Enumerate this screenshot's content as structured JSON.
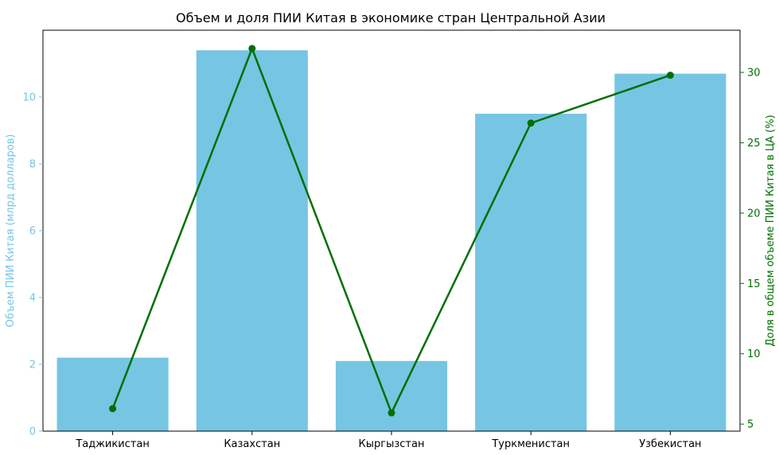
{
  "chart_data": {
    "type": "bar",
    "title": "Объем и доля ПИИ Китая в экономике стран Центральной Азии",
    "categories": [
      "Таджикистан",
      "Казахстан",
      "Кыргызстан",
      "Туркменистан",
      "Узбекистан"
    ],
    "xlabel": "",
    "ylabel": "Объем ПИИ Китая (млрд долларов)",
    "ylim": [
      0,
      12
    ],
    "yticks": [
      0,
      2,
      4,
      6,
      8,
      10
    ],
    "series": [
      {
        "type": "bar",
        "axis": "left",
        "values": [
          2.2,
          11.4,
          2.1,
          9.5,
          10.7
        ]
      },
      {
        "type": "line",
        "axis": "right",
        "values": [
          6.1,
          31.7,
          5.8,
          26.4,
          29.8
        ]
      }
    ],
    "y2label": "Доля в общем объеме ПИИ Китая в ЦА (%)",
    "y2lim": [
      4.5,
      33
    ],
    "y2ticks": [
      5,
      10,
      15,
      20,
      25,
      30
    ],
    "grid": false,
    "colors": {
      "bar": "#76c5e3",
      "line": "#007000",
      "left_axis_text": "#76c5e3",
      "right_axis_text": "#007000",
      "axis": "#000000"
    }
  }
}
